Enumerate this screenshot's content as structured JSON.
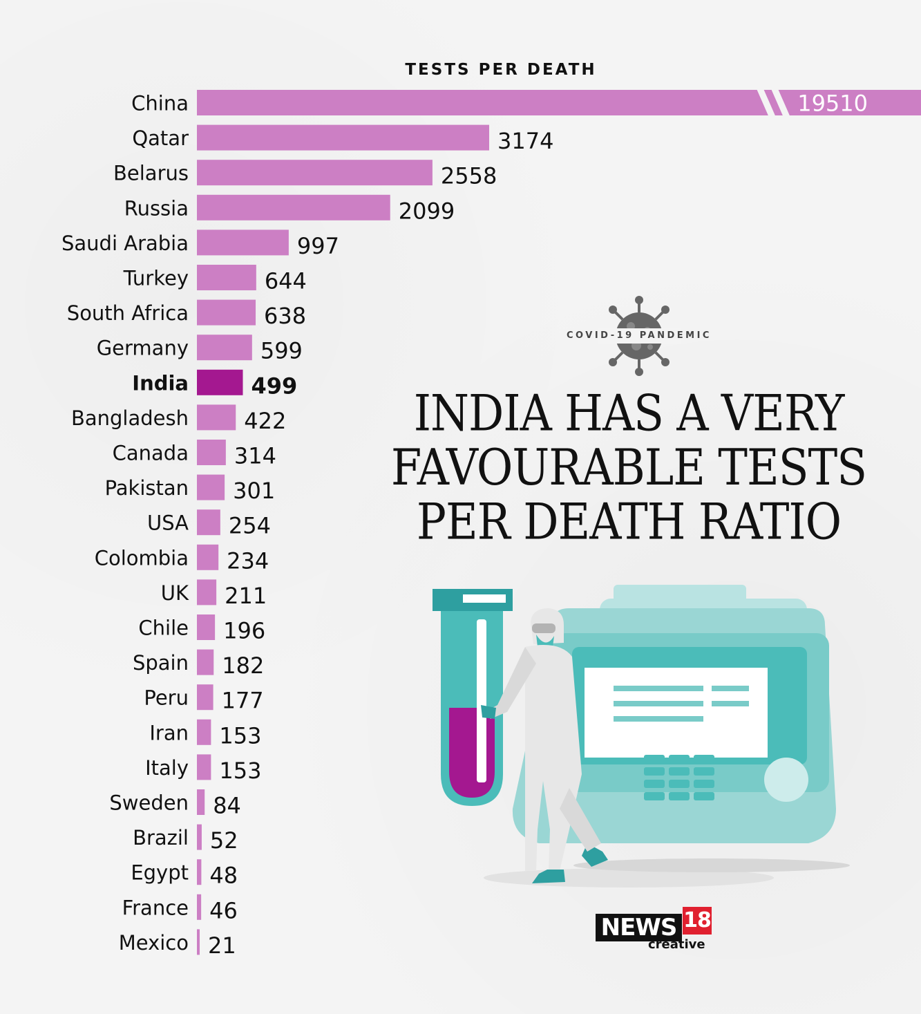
{
  "headline": {
    "tag": "COVID-19 PANDEMIC",
    "lines": [
      "INDIA HAS A VERY",
      "FAVOURABLE TESTS",
      "PER DEATH RATIO"
    ]
  },
  "logo": {
    "news": "NEWS",
    "number": "18",
    "creative": "creative"
  },
  "colors": {
    "bar": "#cc7fc4",
    "highlight": "#a41890",
    "text": "#111111"
  },
  "chart_data": {
    "type": "bar",
    "orientation": "horizontal",
    "title": "TESTS PER DEATH",
    "categories": [
      "China",
      "Qatar",
      "Belarus",
      "Russia",
      "Saudi Arabia",
      "Turkey",
      "South Africa",
      "Germany",
      "India",
      "Bangladesh",
      "Canada",
      "Pakistan",
      "USA",
      "Colombia",
      "UK",
      "Chile",
      "Spain",
      "Peru",
      "Iran",
      "Italy",
      "Sweden",
      "Brazil",
      "Egypt",
      "France",
      "Mexico"
    ],
    "values": [
      19510,
      3174,
      2558,
      2099,
      997,
      644,
      638,
      599,
      499,
      422,
      314,
      301,
      254,
      234,
      211,
      196,
      182,
      177,
      153,
      153,
      84,
      52,
      48,
      46,
      21
    ],
    "highlight": "India",
    "axis_break": "China",
    "grid": false,
    "legend": "none"
  }
}
